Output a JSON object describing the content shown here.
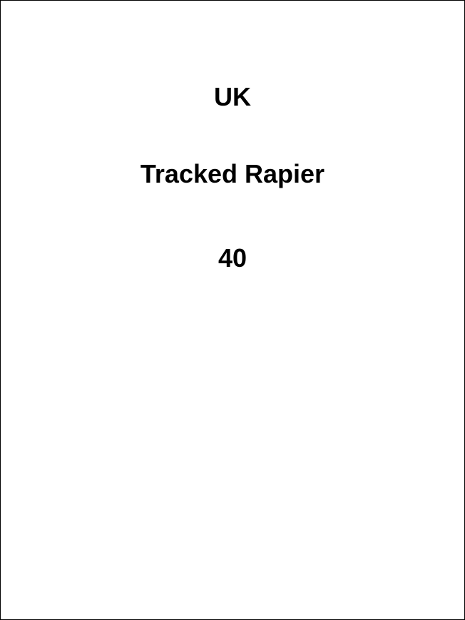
{
  "card": {
    "country": "UK",
    "unit_name": "Tracked Rapier",
    "value": "40"
  },
  "colors": {
    "background": "#ffffff",
    "text": "#000000",
    "border": "#000000"
  }
}
